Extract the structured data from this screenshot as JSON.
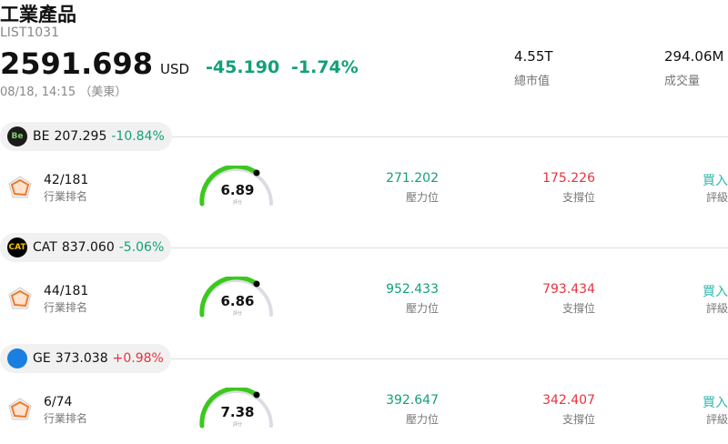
{
  "header": {
    "title": "工業產品",
    "code": "LIST1031",
    "price": "2591.698",
    "currency": "USD",
    "change": "-45.190",
    "change_pct": "-1.74%",
    "time": "08/18, 14:15 （美東）",
    "stats": [
      {
        "value": "4.55T",
        "label": "總市值"
      },
      {
        "value": "294.06M",
        "label": "成交量"
      }
    ]
  },
  "stocks": [
    {
      "logo": "Be",
      "ticker": "BE",
      "price": "207.295",
      "change": "-10.84%",
      "rank": "42/181",
      "rank_label": "行業排名",
      "score": "6.89",
      "score_label": "評分",
      "resistance": "271.202",
      "resistance_label": "壓力位",
      "support": "175.226",
      "support_label": "支撐位",
      "rating": "買入",
      "rating_label": "評級"
    },
    {
      "logo": "CAT",
      "ticker": "CAT",
      "price": "837.060",
      "change": "-5.06%",
      "rank": "44/181",
      "rank_label": "行業排名",
      "score": "6.86",
      "score_label": "評分",
      "resistance": "952.433",
      "resistance_label": "壓力位",
      "support": "793.434",
      "support_label": "支撐位",
      "rating": "買入",
      "rating_label": "評級"
    },
    {
      "ticker": "GE",
      "price": "373.038",
      "change": "+0.98%",
      "rank": "6/74",
      "rank_label": "行業排名",
      "score": "7.38",
      "score_label": "評分",
      "resistance": "392.647",
      "resistance_label": "壓力位",
      "support": "342.407",
      "support_label": "支撐位",
      "rating": "買入",
      "rating_label": "評級"
    }
  ]
}
